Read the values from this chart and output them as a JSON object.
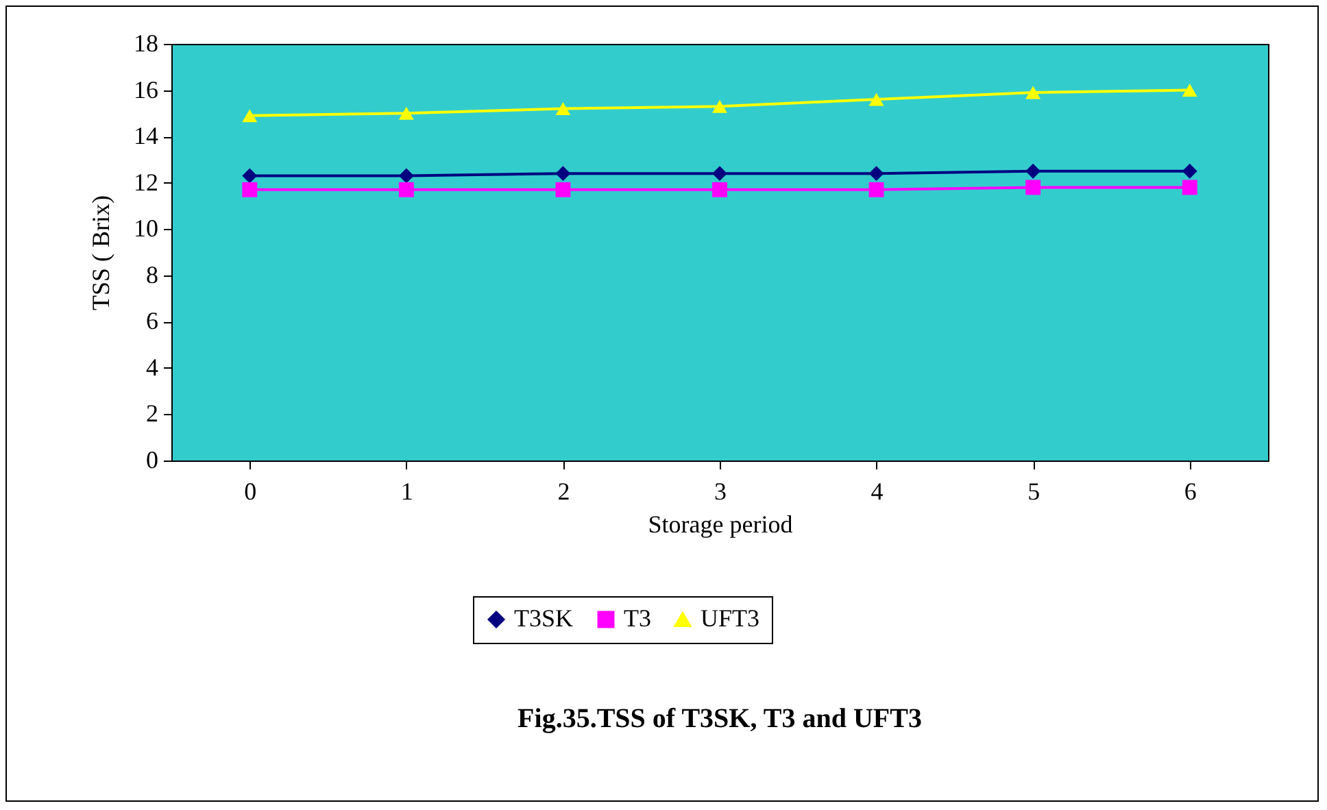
{
  "chart_data": {
    "type": "line",
    "title": "Fig.35.TSS of T3SK, T3 and UFT3",
    "xlabel": "Storage period",
    "ylabel": "TSS ( Brix)",
    "categories": [
      "0",
      "1",
      "2",
      "3",
      "4",
      "5",
      "6"
    ],
    "series": [
      {
        "name": "T3SK",
        "color": "#000080",
        "marker": "diamond",
        "values": [
          12.3,
          12.3,
          12.4,
          12.4,
          12.4,
          12.5,
          12.5
        ]
      },
      {
        "name": "T3",
        "color": "#ff00ff",
        "marker": "square",
        "values": [
          11.7,
          11.7,
          11.7,
          11.7,
          11.7,
          11.8,
          11.8
        ]
      },
      {
        "name": "UFT3",
        "color": "#ffff00",
        "marker": "triangle",
        "values": [
          14.9,
          15.0,
          15.2,
          15.3,
          15.6,
          15.9,
          16.0
        ]
      }
    ],
    "ylim": [
      0,
      18
    ],
    "yticks": [
      0,
      2,
      4,
      6,
      8,
      10,
      12,
      14,
      16,
      18
    ],
    "grid": false,
    "legend": "bottom"
  }
}
